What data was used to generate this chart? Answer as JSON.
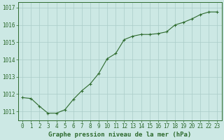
{
  "x": [
    0,
    1,
    2,
    3,
    4,
    5,
    6,
    7,
    8,
    9,
    10,
    11,
    12,
    13,
    14,
    15,
    16,
    17,
    18,
    19,
    20,
    21,
    22,
    23
  ],
  "y": [
    1011.8,
    1011.75,
    1011.3,
    1010.9,
    1010.9,
    1011.1,
    1011.7,
    1012.2,
    1012.6,
    1013.2,
    1014.05,
    1014.35,
    1015.15,
    1015.35,
    1015.45,
    1015.45,
    1015.5,
    1015.6,
    1016.0,
    1016.15,
    1016.35,
    1016.6,
    1016.75,
    1016.75
  ],
  "line_color": "#2d6a2d",
  "marker": "+",
  "bg_color": "#cce8e4",
  "grid_color": "#aaccc8",
  "xlabel": "Graphe pression niveau de la mer (hPa)",
  "yticks": [
    1011,
    1012,
    1013,
    1014,
    1015,
    1016,
    1017
  ],
  "ylim": [
    1010.5,
    1017.3
  ],
  "xlim": [
    -0.5,
    23.5
  ],
  "xtick_labels": [
    "0",
    "1",
    "2",
    "3",
    "4",
    "5",
    "6",
    "7",
    "8",
    "9",
    "10",
    "11",
    "12",
    "13",
    "14",
    "15",
    "16",
    "17",
    "18",
    "19",
    "20",
    "21",
    "22",
    "23"
  ],
  "label_color": "#2d6a2d",
  "xlabel_fontsize": 6.5,
  "tick_fontsize": 5.5,
  "tick_color": "#2d6a2d",
  "spine_color": "#2d6a2d"
}
